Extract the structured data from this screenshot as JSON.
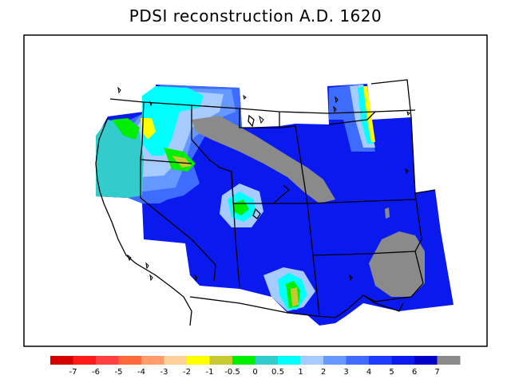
{
  "title": "PDSI reconstruction A.D. 1620",
  "colors": {
    "background": "#ffffff",
    "frame": "#000000",
    "no_data_gray": "#8a8a8a",
    "outline": "#000000"
  },
  "legend": {
    "swatches": [
      {
        "color": "#d40000"
      },
      {
        "color": "#ff1a1a"
      },
      {
        "color": "#ff4040"
      },
      {
        "color": "#ff6a3a"
      },
      {
        "color": "#ff9c6a"
      },
      {
        "color": "#ffd09a"
      },
      {
        "color": "#ffff00"
      },
      {
        "color": "#c8c832"
      },
      {
        "color": "#00ee00"
      },
      {
        "color": "#33cccc"
      },
      {
        "color": "#00ffff"
      },
      {
        "color": "#a8cbff"
      },
      {
        "color": "#6699ff"
      },
      {
        "color": "#3d6cff"
      },
      {
        "color": "#1e3cff"
      },
      {
        "color": "#0a1aee"
      },
      {
        "color": "#0000c8"
      },
      {
        "color": "#8a8a8a"
      }
    ],
    "ticks": [
      "-7",
      "-6",
      "-5",
      "-4",
      "-3",
      "-2",
      "-1",
      "-0.5",
      "0",
      "0.5",
      "1",
      "2",
      "3",
      "4",
      "5",
      "6",
      "7"
    ]
  }
}
